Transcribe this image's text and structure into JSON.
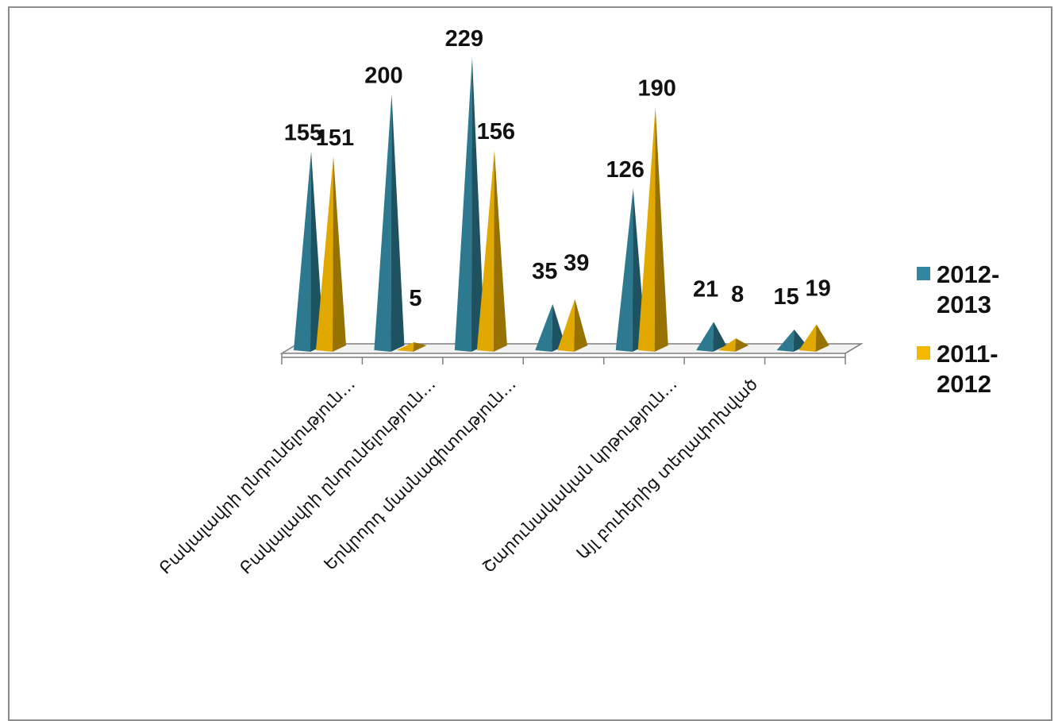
{
  "chart_data": {
    "type": "bar",
    "style": "3d-pyramid",
    "categories": [
      "Բակալավրի ընդունելություն…",
      "Բակալավրի ընդունելություն…",
      "Երկրորդ մասնագիտություն…",
      "",
      "Շարունակական կրթություն…",
      "Այլ բուհերից տեղափոխված",
      ""
    ],
    "series": [
      {
        "name": "2012-2013",
        "legend_lines": [
          "2012-",
          "2013"
        ],
        "color": "#31859c",
        "values": [
          155,
          200,
          229,
          35,
          126,
          21,
          15
        ]
      },
      {
        "name": "2011-2012",
        "legend_lines": [
          "2011-",
          "2012"
        ],
        "color": "#f5b800",
        "values": [
          151,
          5,
          156,
          39,
          190,
          8,
          19
        ]
      }
    ],
    "data_labels": [
      [
        "155",
        "200",
        "229",
        "35",
        "126",
        "21",
        "15"
      ],
      [
        "151",
        "5",
        "156",
        "39",
        "190",
        "8",
        "19"
      ]
    ],
    "ylim": [
      0,
      240
    ],
    "legend_position": "right",
    "grid": false,
    "title": ""
  }
}
